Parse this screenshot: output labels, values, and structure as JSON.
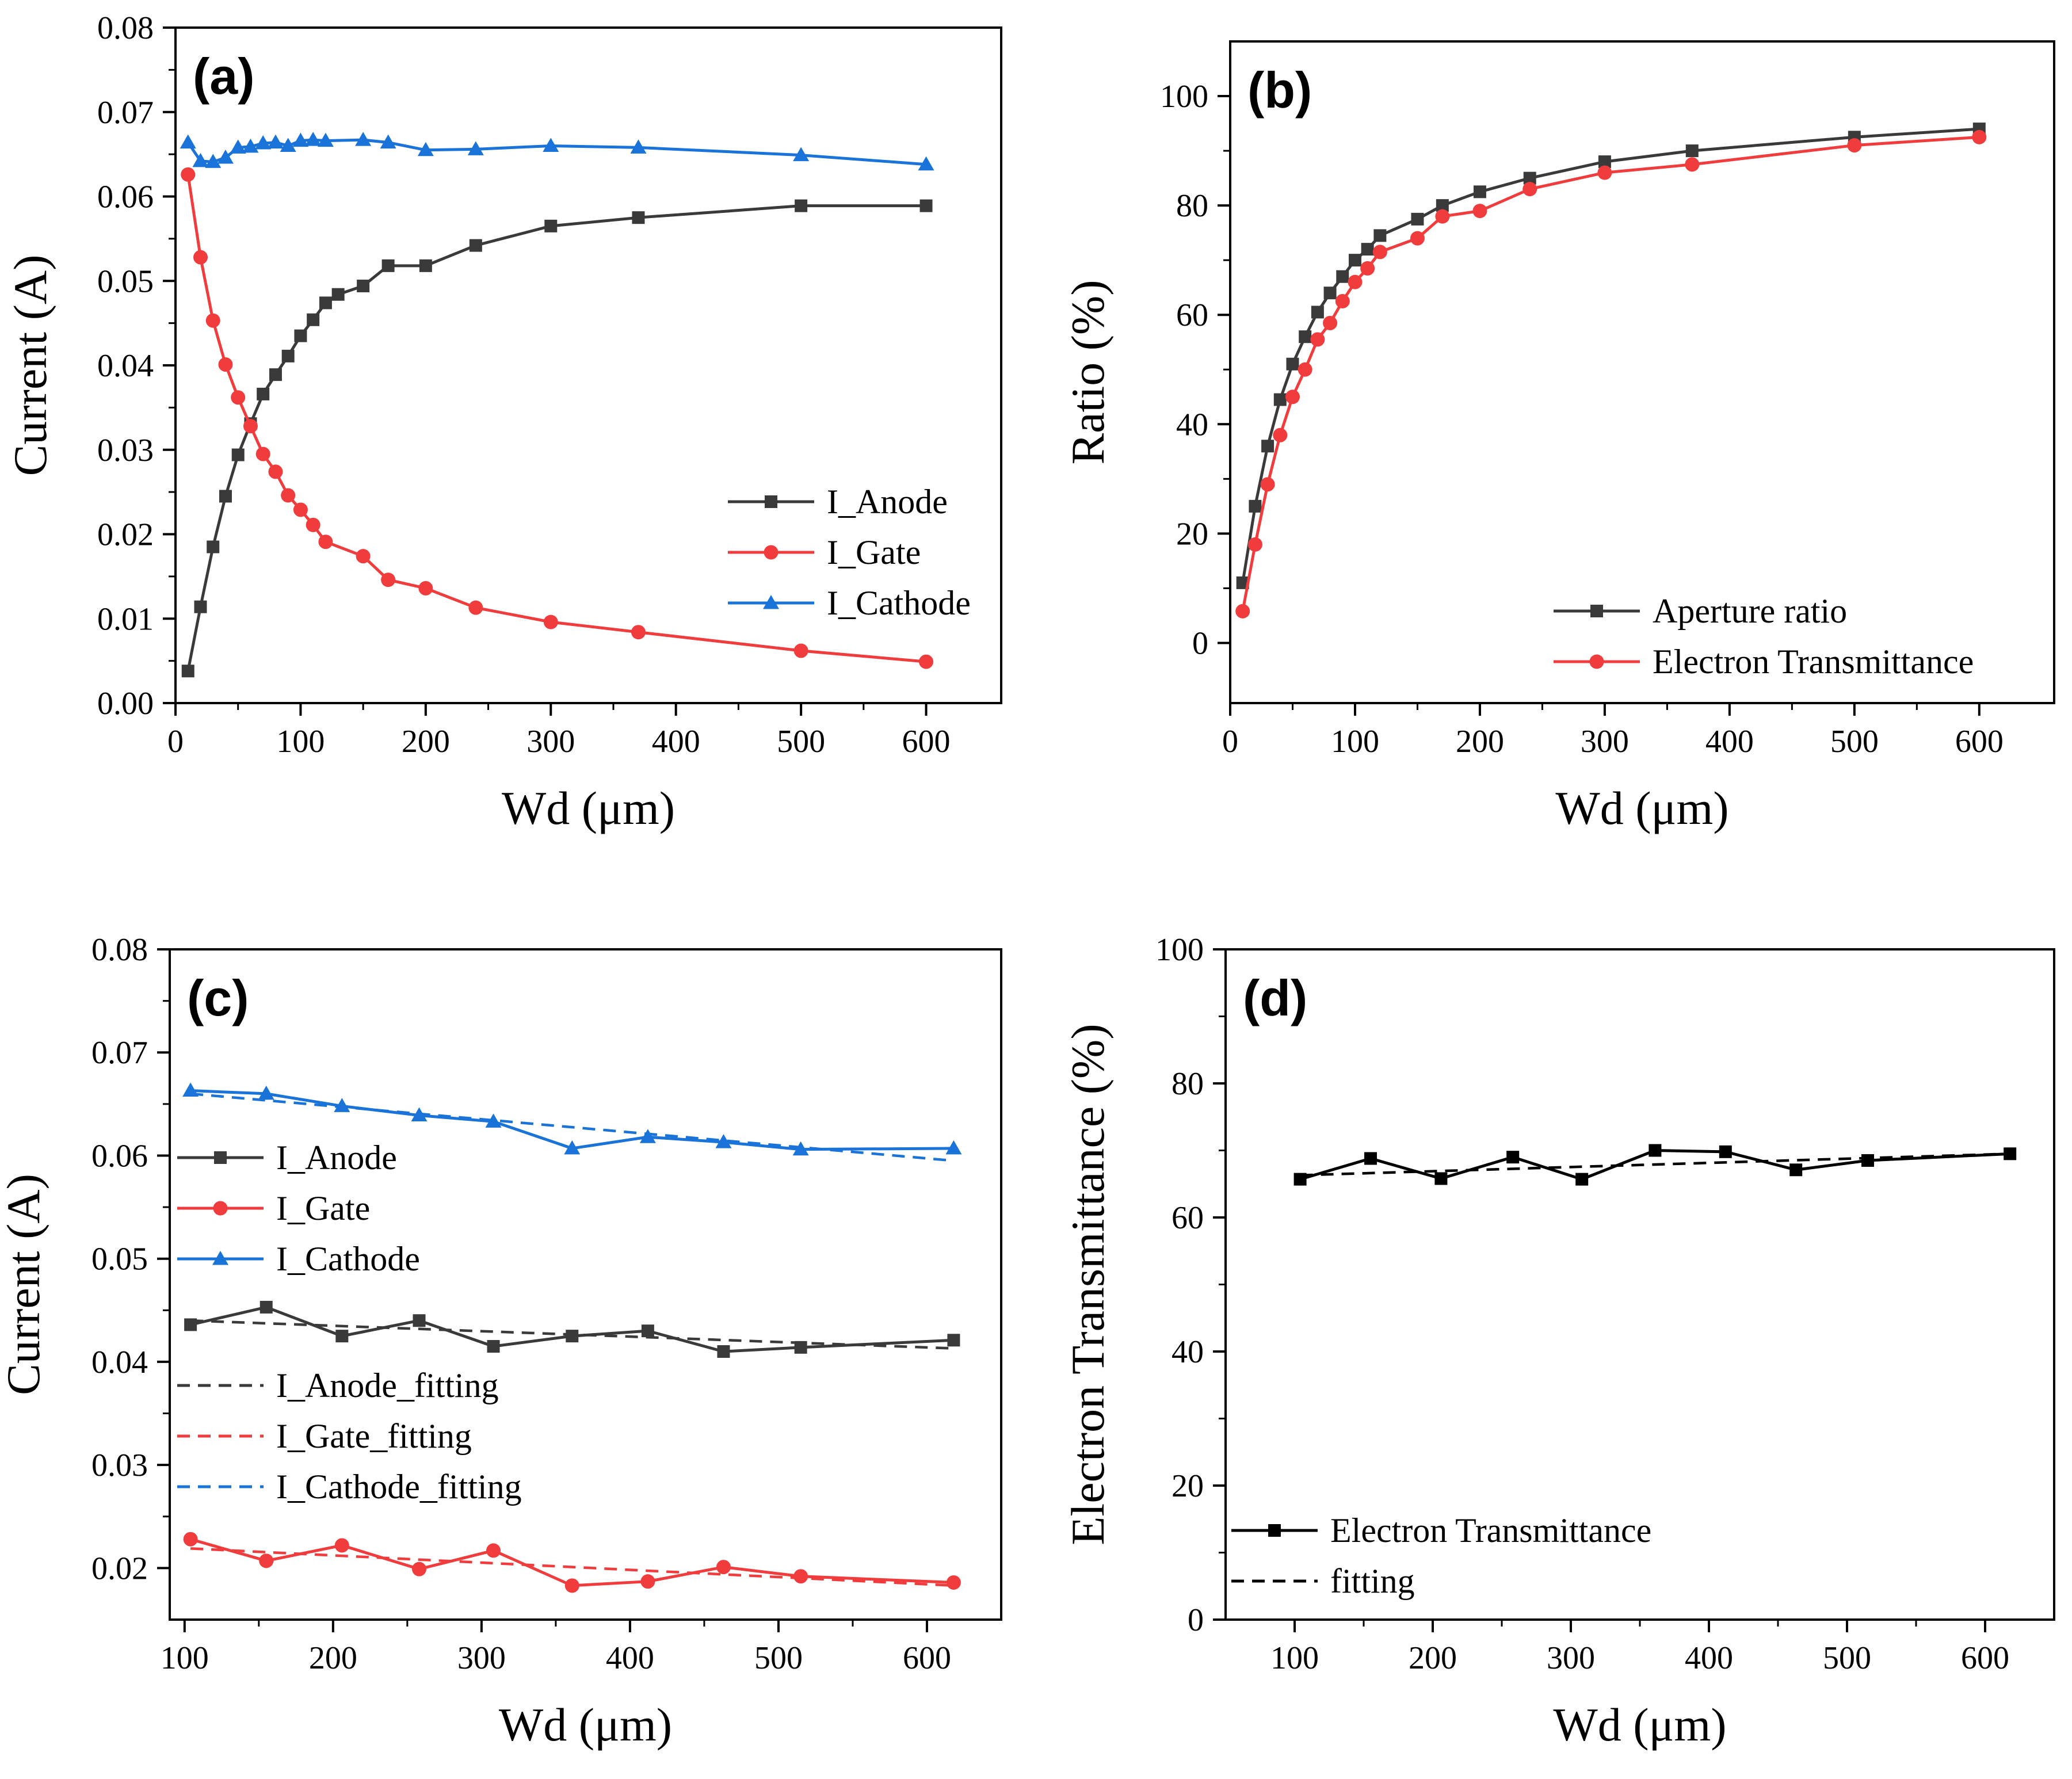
{
  "figure": {
    "panels": [
      "a",
      "b",
      "c",
      "d"
    ]
  },
  "chart_data": [
    {
      "panel": "a",
      "label": "(a)",
      "type": "line",
      "xlabel": "Wd (μm)",
      "ylabel": "Current (A)",
      "xlim": [
        0,
        660
      ],
      "ylim": [
        0,
        0.08
      ],
      "xticks": [
        0,
        100,
        200,
        300,
        400,
        500,
        600
      ],
      "yticks": [
        0.0,
        0.01,
        0.02,
        0.03,
        0.04,
        0.05,
        0.06,
        0.07,
        0.08
      ],
      "ytick_labels": [
        "0.00",
        "0.01",
        "0.02",
        "0.03",
        "0.04",
        "0.05",
        "0.06",
        "0.07",
        "0.08"
      ],
      "legend_position": "center-right",
      "series": [
        {
          "name": "I_Anode",
          "color": "#3a3a3a",
          "marker": "square",
          "dash": "solid",
          "x": [
            10,
            20,
            30,
            40,
            50,
            60,
            70,
            80,
            90,
            100,
            110,
            120,
            130,
            150,
            170,
            200,
            240,
            300,
            370,
            500,
            600
          ],
          "y": [
            0.0038,
            0.0114,
            0.0185,
            0.0245,
            0.0294,
            0.0331,
            0.0366,
            0.0389,
            0.0411,
            0.0435,
            0.0454,
            0.0474,
            0.0484,
            0.0494,
            0.0518,
            0.0518,
            0.0542,
            0.0565,
            0.0575,
            0.0589,
            0.0589
          ]
        },
        {
          "name": "I_Gate",
          "color": "#f03c3c",
          "marker": "circle",
          "dash": "solid",
          "x": [
            10,
            20,
            30,
            40,
            50,
            60,
            70,
            80,
            90,
            100,
            110,
            120,
            150,
            170,
            200,
            240,
            300,
            370,
            500,
            600
          ],
          "y": [
            0.0626,
            0.0528,
            0.0453,
            0.0401,
            0.0362,
            0.0328,
            0.0295,
            0.0274,
            0.0246,
            0.0229,
            0.0211,
            0.0191,
            0.0174,
            0.0146,
            0.0136,
            0.0113,
            0.0096,
            0.0084,
            0.0062,
            0.0049
          ]
        },
        {
          "name": "I_Cathode",
          "color": "#1a73d9",
          "marker": "triangle",
          "dash": "solid",
          "x": [
            10,
            20,
            30,
            40,
            50,
            60,
            70,
            80,
            90,
            100,
            110,
            120,
            150,
            170,
            200,
            240,
            300,
            370,
            500,
            600
          ],
          "y": [
            0.0664,
            0.0642,
            0.0641,
            0.0646,
            0.0658,
            0.0659,
            0.0663,
            0.0664,
            0.066,
            0.0666,
            0.0667,
            0.0666,
            0.0667,
            0.0664,
            0.0655,
            0.0656,
            0.066,
            0.0658,
            0.0649,
            0.0638
          ]
        }
      ]
    },
    {
      "panel": "b",
      "label": "(b)",
      "type": "line",
      "xlabel": "Wd (μm)",
      "ylabel": "Ratio (%)",
      "xlim": [
        0,
        660
      ],
      "ylim": [
        -11,
        110
      ],
      "xticks": [
        0,
        100,
        200,
        300,
        400,
        500,
        600
      ],
      "yticks": [
        0,
        20,
        40,
        60,
        80,
        100
      ],
      "ytick_labels": [
        "0",
        "20",
        "40",
        "60",
        "80",
        "100"
      ],
      "legend_position": "bottom-right",
      "series": [
        {
          "name": "Aperture ratio",
          "color": "#3a3a3a",
          "marker": "square",
          "dash": "solid",
          "x": [
            10,
            20,
            30,
            40,
            50,
            60,
            70,
            80,
            90,
            100,
            110,
            120,
            150,
            170,
            200,
            240,
            300,
            370,
            500,
            600
          ],
          "y": [
            11,
            25,
            36,
            44.5,
            51,
            56,
            60.5,
            64,
            67,
            70,
            72,
            74.5,
            77.5,
            80,
            82.5,
            85,
            88,
            90,
            92.5,
            94
          ]
        },
        {
          "name": "Electron Transmittance",
          "color": "#f03c3c",
          "marker": "circle",
          "dash": "solid",
          "x": [
            10,
            20,
            30,
            40,
            50,
            60,
            70,
            80,
            90,
            100,
            110,
            120,
            150,
            170,
            200,
            240,
            300,
            370,
            500,
            600
          ],
          "y": [
            5.8,
            18,
            29,
            38,
            45,
            50,
            55.5,
            58.5,
            62.5,
            66,
            68.5,
            71.5,
            74,
            78,
            79,
            83,
            86,
            87.5,
            91,
            92.5
          ]
        }
      ]
    },
    {
      "panel": "c",
      "label": "(c)",
      "type": "line",
      "xlabel": "Wd (μm)",
      "ylabel": "Current (A)",
      "xlim": [
        90,
        650
      ],
      "ylim": [
        0.015,
        0.08
      ],
      "xticks": [
        100,
        200,
        300,
        400,
        500,
        600
      ],
      "yticks": [
        0.02,
        0.03,
        0.04,
        0.05,
        0.06,
        0.07,
        0.08
      ],
      "ytick_labels": [
        "0.02",
        "0.03",
        "0.04",
        "0.05",
        "0.06",
        "0.07",
        "0.08"
      ],
      "legend_position": "left",
      "series": [
        {
          "name": "I_Anode",
          "color": "#3a3a3a",
          "marker": "square",
          "dash": "solid",
          "x": [
            104,
            155,
            206,
            258,
            308,
            361,
            412,
            463,
            515,
            618
          ],
          "y": [
            0.0436,
            0.0453,
            0.0425,
            0.044,
            0.0415,
            0.0425,
            0.043,
            0.041,
            0.0414,
            0.0421
          ]
        },
        {
          "name": "I_Gate",
          "color": "#f03c3c",
          "marker": "circle",
          "dash": "solid",
          "x": [
            104,
            155,
            206,
            258,
            308,
            361,
            412,
            463,
            515,
            618
          ],
          "y": [
            0.0228,
            0.0207,
            0.0222,
            0.0199,
            0.0217,
            0.0183,
            0.0187,
            0.0201,
            0.0192,
            0.0186
          ]
        },
        {
          "name": "I_Cathode",
          "color": "#1a73d9",
          "marker": "triangle",
          "dash": "solid",
          "x": [
            104,
            155,
            206,
            258,
            308,
            361,
            412,
            463,
            515,
            618
          ],
          "y": [
            0.0663,
            0.066,
            0.0648,
            0.0639,
            0.0633,
            0.0607,
            0.0618,
            0.0613,
            0.0606,
            0.0607
          ]
        },
        {
          "name": "I_Anode_fitting",
          "color": "#3a3a3a",
          "marker": "none",
          "dash": "dashed",
          "x": [
            104,
            618
          ],
          "y": [
            0.044,
            0.0413
          ]
        },
        {
          "name": "I_Gate_fitting",
          "color": "#f03c3c",
          "marker": "none",
          "dash": "dashed",
          "x": [
            104,
            618
          ],
          "y": [
            0.0219,
            0.0183
          ]
        },
        {
          "name": "I_Cathode_fitting",
          "color": "#1a73d9",
          "marker": "none",
          "dash": "dashed",
          "x": [
            104,
            618
          ],
          "y": [
            0.066,
            0.0595
          ]
        }
      ]
    },
    {
      "panel": "d",
      "label": "(d)",
      "type": "line",
      "xlabel": "Wd (μm)",
      "ylabel": "Electron Transmittance (%)",
      "xlim": [
        50,
        650
      ],
      "ylim": [
        0,
        100
      ],
      "xticks": [
        100,
        200,
        300,
        400,
        500,
        600
      ],
      "yticks": [
        0,
        20,
        40,
        60,
        80,
        100
      ],
      "ytick_labels": [
        "0",
        "20",
        "40",
        "60",
        "80",
        "100"
      ],
      "legend_position": "bottom-left",
      "series": [
        {
          "name": "Electron Transmittance",
          "color": "#000000",
          "marker": "square",
          "dash": "solid",
          "x": [
            104,
            155,
            206,
            258,
            308,
            361,
            412,
            463,
            515,
            618
          ],
          "y": [
            65.7,
            68.8,
            65.8,
            69.0,
            65.7,
            70.0,
            69.8,
            67.1,
            68.5,
            69.5
          ]
        },
        {
          "name": "fitting",
          "color": "#000000",
          "marker": "none",
          "dash": "dashed",
          "x": [
            104,
            618
          ],
          "y": [
            66.3,
            69.5
          ]
        }
      ]
    }
  ]
}
